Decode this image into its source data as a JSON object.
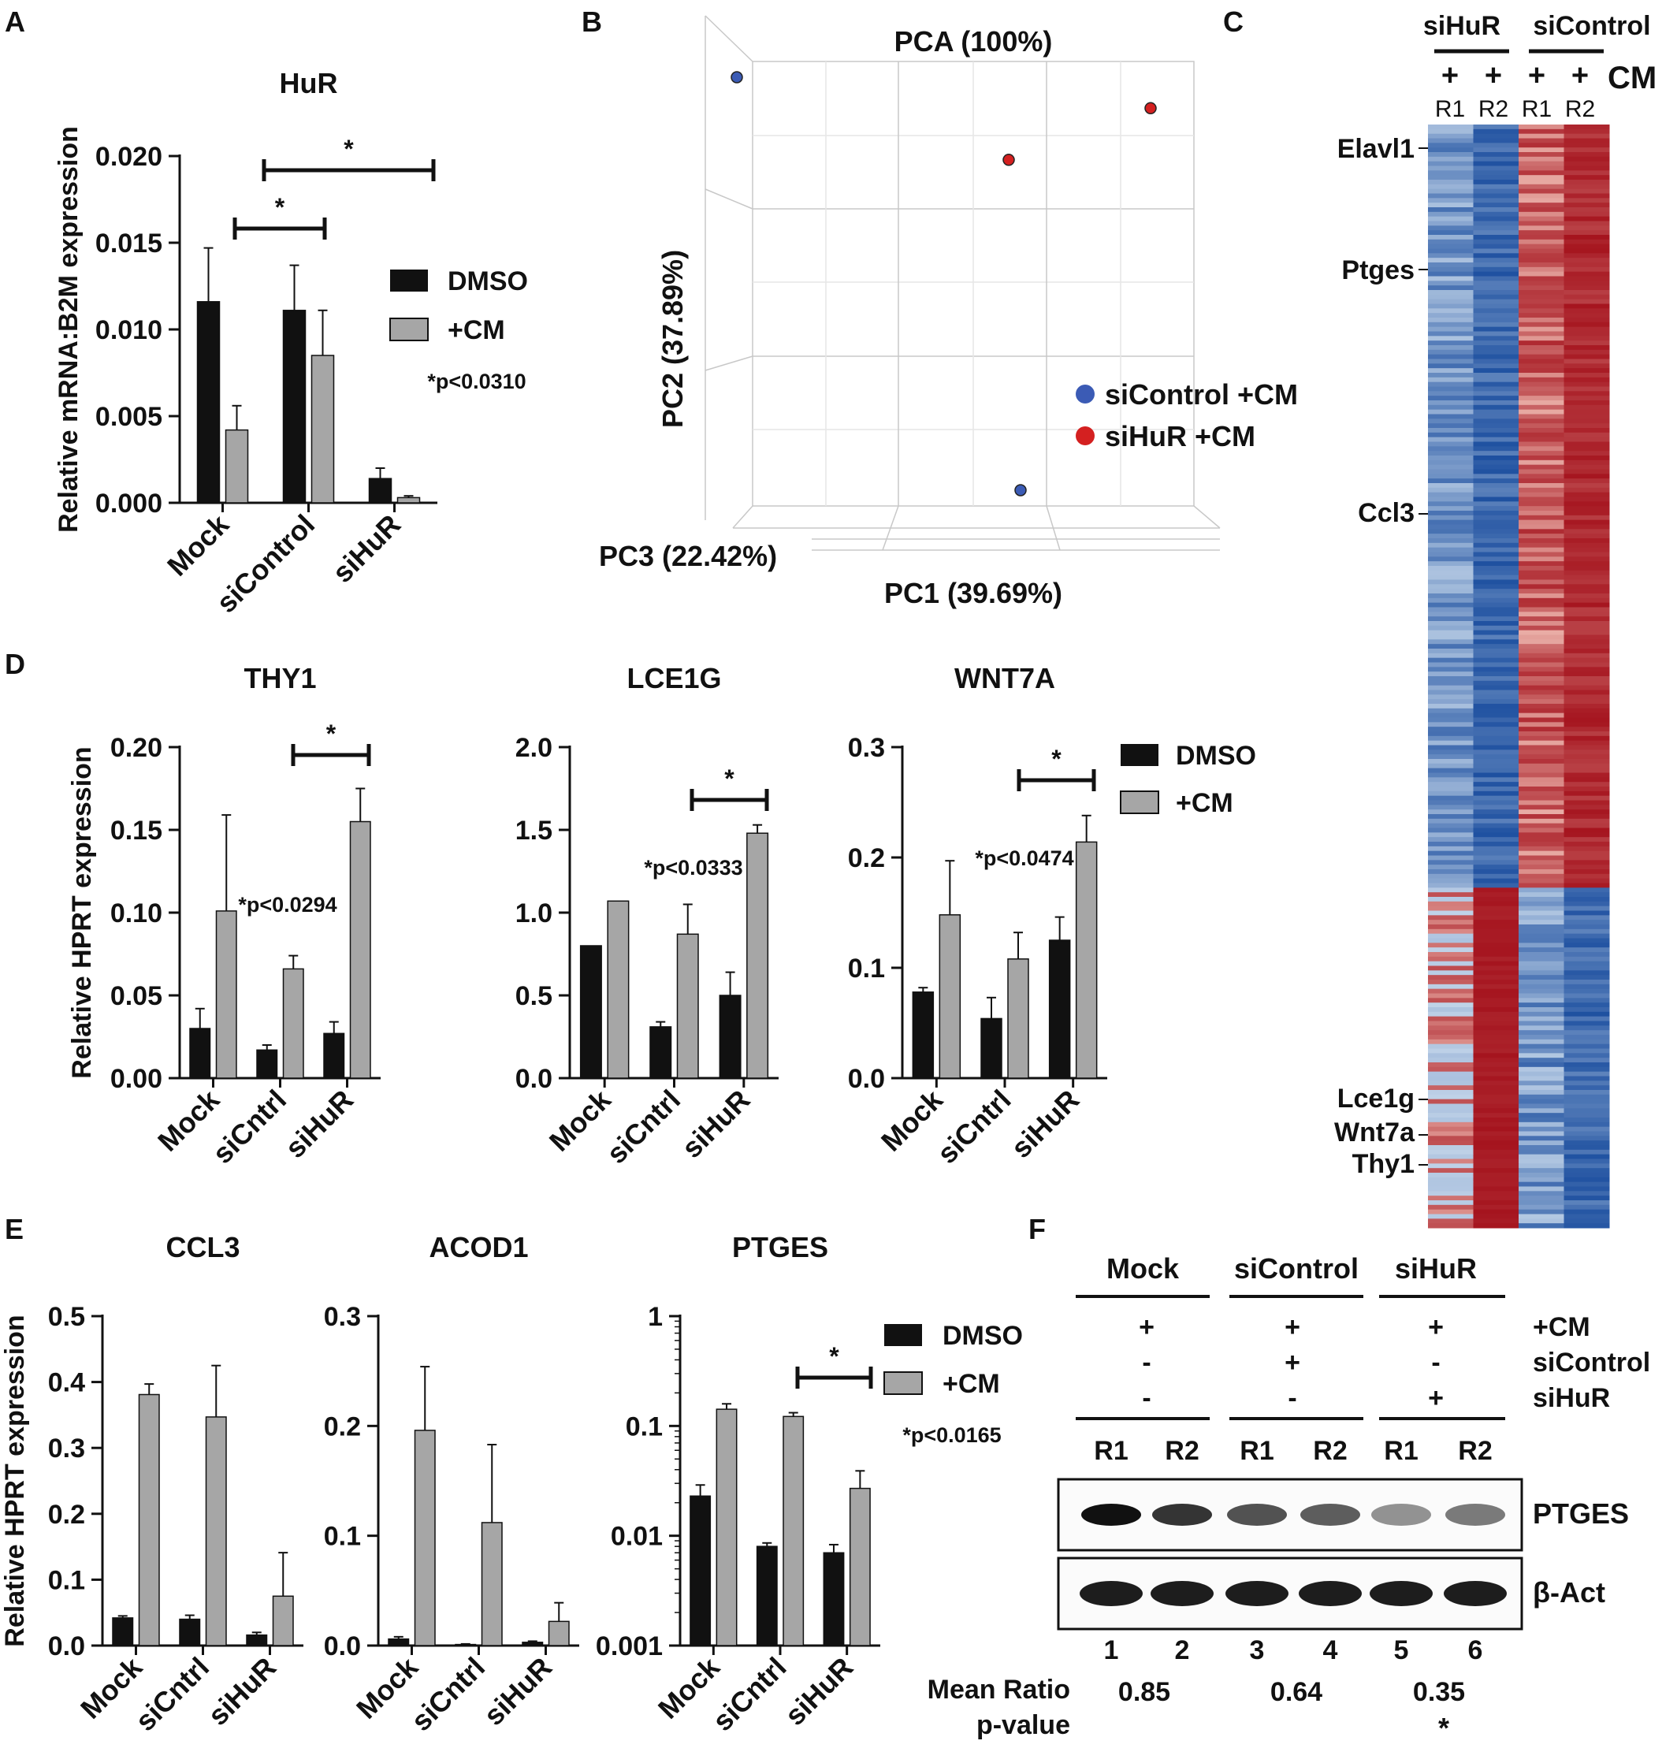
{
  "colors": {
    "dmso": "#111111",
    "cm": "#a6a6a6",
    "sicontrol_dot": "#3b5bb5",
    "sihur_dot": "#d42020",
    "heat_low": "#1f4e9c",
    "heat_high": "#a41420"
  },
  "panels": {
    "A": "A",
    "B": "B",
    "C": "C",
    "D": "D",
    "E": "E",
    "F": "F"
  },
  "legend": {
    "dmso": "DMSO",
    "cm": "+CM"
  },
  "chart_data": [
    {
      "id": "A",
      "type": "bar",
      "title": "HuR",
      "ylabel": "Relative mRNA:B2M expression",
      "categories": [
        "Mock",
        "siControl",
        "siHuR"
      ],
      "ylim": [
        0,
        0.02
      ],
      "yticks": [
        0,
        0.005,
        0.01,
        0.015,
        0.02
      ],
      "ytick_labels": [
        "0.000",
        "0.005",
        "0.010",
        "0.015",
        "0.020"
      ],
      "series": [
        {
          "name": "DMSO",
          "values": [
            0.0116,
            0.0111,
            0.0014
          ],
          "errors": [
            0.0031,
            0.0026,
            0.0006
          ]
        },
        {
          "name": "+CM",
          "values": [
            0.0042,
            0.0085,
            0.0003
          ],
          "errors": [
            0.0014,
            0.0026,
            0.0001
          ]
        }
      ],
      "pvalue": "*p<0.0310",
      "sig_marker": "*"
    },
    {
      "id": "B",
      "type": "scatter",
      "title": "PCA (100%)",
      "xlabel": "PC1 (39.69%)",
      "ylabel": "PC2 (37.89%)",
      "zlabel": "PC3 (22.42%)",
      "series": [
        {
          "name": "siControl +CM",
          "color": "#3b5bb5",
          "points": [
            [
              -1.0,
              1.0
            ],
            [
              0.2,
              -1.0
            ]
          ]
        },
        {
          "name": "siHuR +CM",
          "color": "#d42020",
          "points": [
            [
              0.15,
              0.6
            ],
            [
              0.75,
              0.85
            ]
          ]
        }
      ]
    },
    {
      "id": "C",
      "type": "heatmap",
      "group_labels": [
        "siHuR",
        "siControl"
      ],
      "cm_row": [
        "+",
        "+",
        "+",
        "+"
      ],
      "cm_label": "CM",
      "columns": [
        "R1",
        "R2",
        "R1",
        "R2"
      ],
      "gene_labels": [
        "Elavl1",
        "Ptges",
        "Ccl3",
        "Lce1g",
        "Wnt7a",
        "Thy1"
      ],
      "split_fraction": 0.69
    },
    {
      "id": "D1",
      "type": "bar",
      "title": "THY1",
      "ylabel": "Relative HPRT expression",
      "categories": [
        "Mock",
        "siCntrl",
        "siHuR"
      ],
      "ylim": [
        0,
        0.2
      ],
      "yticks": [
        0,
        0.05,
        0.1,
        0.15,
        0.2
      ],
      "ytick_labels": [
        "0.00",
        "0.05",
        "0.10",
        "0.15",
        "0.20"
      ],
      "series": [
        {
          "name": "DMSO",
          "values": [
            0.03,
            0.017,
            0.027
          ],
          "errors": [
            0.012,
            0.003,
            0.007
          ]
        },
        {
          "name": "+CM",
          "values": [
            0.101,
            0.066,
            0.155
          ],
          "errors": [
            0.058,
            0.008,
            0.02
          ]
        }
      ],
      "pvalue": "*p<0.0294",
      "sig_marker": "*"
    },
    {
      "id": "D2",
      "type": "bar",
      "title": "LCE1G",
      "categories": [
        "Mock",
        "siCntrl",
        "siHuR"
      ],
      "ylim": [
        0,
        2
      ],
      "yticks": [
        0,
        0.5,
        1,
        1.5,
        2
      ],
      "ytick_labels": [
        "0.0",
        "0.5",
        "1.0",
        "1.5",
        "2.0"
      ],
      "series": [
        {
          "name": "DMSO",
          "values": [
            0.8,
            0.31,
            0.5
          ],
          "errors": [
            0,
            0.03,
            0.14
          ]
        },
        {
          "name": "+CM",
          "values": [
            1.07,
            0.87,
            1.48
          ],
          "errors": [
            0,
            0.18,
            0.05
          ]
        }
      ],
      "pvalue": "*p<0.0333",
      "sig_marker": "*"
    },
    {
      "id": "D3",
      "type": "bar",
      "title": "WNT7A",
      "categories": [
        "Mock",
        "siCntrl",
        "siHuR"
      ],
      "ylim": [
        0,
        0.3
      ],
      "yticks": [
        0,
        0.1,
        0.2,
        0.3
      ],
      "ytick_labels": [
        "0.0",
        "0.1",
        "0.2",
        "0.3"
      ],
      "series": [
        {
          "name": "DMSO",
          "values": [
            0.078,
            0.054,
            0.125
          ],
          "errors": [
            0.004,
            0.019,
            0.021
          ]
        },
        {
          "name": "+CM",
          "values": [
            0.148,
            0.108,
            0.214
          ],
          "errors": [
            0.049,
            0.024,
            0.024
          ]
        }
      ],
      "pvalue": "*p<0.0474",
      "sig_marker": "*"
    },
    {
      "id": "E1",
      "type": "bar",
      "title": "CCL3",
      "ylabel": "Relative HPRT expression",
      "categories": [
        "Mock",
        "siCntrl",
        "siHuR"
      ],
      "ylim": [
        0,
        0.5
      ],
      "yticks": [
        0,
        0.1,
        0.2,
        0.3,
        0.4,
        0.5
      ],
      "ytick_labels": [
        "0.0",
        "0.1",
        "0.2",
        "0.3",
        "0.4",
        "0.5"
      ],
      "series": [
        {
          "name": "DMSO",
          "values": [
            0.042,
            0.04,
            0.016
          ],
          "errors": [
            0.003,
            0.006,
            0.004
          ]
        },
        {
          "name": "+CM",
          "values": [
            0.381,
            0.347,
            0.075
          ],
          "errors": [
            0.016,
            0.078,
            0.066
          ]
        }
      ]
    },
    {
      "id": "E2",
      "type": "bar",
      "title": "ACOD1",
      "categories": [
        "Mock",
        "siCntrl",
        "siHuR"
      ],
      "ylim": [
        0,
        0.3
      ],
      "yticks": [
        0,
        0.1,
        0.2,
        0.3
      ],
      "ytick_labels": [
        "0.0",
        "0.1",
        "0.2",
        "0.3"
      ],
      "series": [
        {
          "name": "DMSO",
          "values": [
            0.006,
            0.001,
            0.003
          ],
          "errors": [
            0.002,
            0.0005,
            0.001
          ]
        },
        {
          "name": "+CM",
          "values": [
            0.196,
            0.112,
            0.022
          ],
          "errors": [
            0.058,
            0.071,
            0.017
          ]
        }
      ]
    },
    {
      "id": "E3",
      "type": "bar",
      "title": "PTGES",
      "scale": "log",
      "categories": [
        "Mock",
        "siCntrl",
        "siHuR"
      ],
      "ylim": [
        0.001,
        1
      ],
      "yticks": [
        0.001,
        0.01,
        0.1,
        1
      ],
      "ytick_labels": [
        "0.001",
        "0.01",
        "0.1",
        "1"
      ],
      "series": [
        {
          "name": "DMSO",
          "values": [
            0.023,
            0.008,
            0.007
          ],
          "errors": [
            0.006,
            0.0006,
            0.0013
          ]
        },
        {
          "name": "+CM",
          "values": [
            0.142,
            0.122,
            0.027
          ],
          "errors": [
            0.017,
            0.01,
            0.012
          ]
        }
      ],
      "pvalue": "*p<0.0165",
      "sig_marker": "*"
    },
    {
      "id": "F",
      "type": "table",
      "groups": [
        "Mock",
        "siControl",
        "siHuR"
      ],
      "rows": [
        {
          "label": "+CM",
          "values": [
            "+",
            "+",
            "+"
          ]
        },
        {
          "label": "siControl",
          "values": [
            "-",
            "+",
            "-"
          ]
        },
        {
          "label": "siHuR",
          "values": [
            "-",
            "-",
            "+"
          ]
        }
      ],
      "replicates": [
        "R1",
        "R2",
        "R1",
        "R2",
        "R1",
        "R2"
      ],
      "bands": [
        "PTGES",
        "β-Act"
      ],
      "lanes": [
        "1",
        "2",
        "3",
        "4",
        "5",
        "6"
      ],
      "ptges_intensity": [
        1.0,
        0.85,
        0.72,
        0.68,
        0.45,
        0.55
      ],
      "ratio_label": "Mean Ratio",
      "pvalue_label": "p-value",
      "mean_ratios": [
        "0.85",
        "0.64",
        "0.35"
      ],
      "pvalues": [
        "",
        "",
        "*"
      ]
    }
  ]
}
